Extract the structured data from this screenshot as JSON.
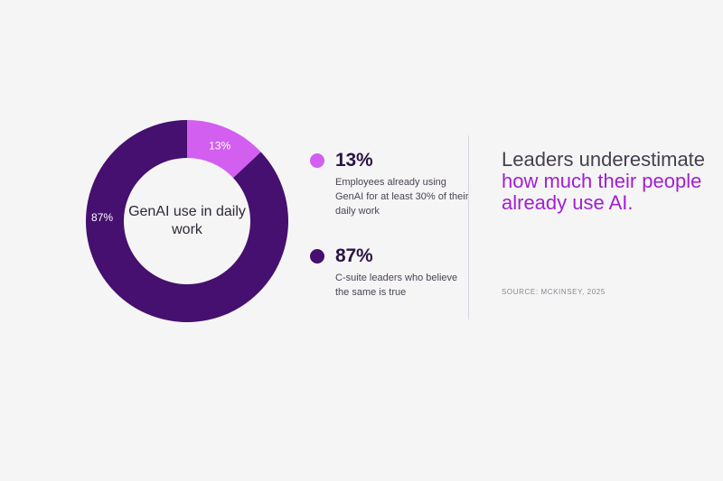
{
  "colors": {
    "background": "#f6f5f5",
    "light_purple": "#d25ff0",
    "dark_purple": "#45106f",
    "accent_text": "#a11ed4"
  },
  "chart_data": {
    "type": "pie",
    "donut": true,
    "center_label": "GenAI use in daily work",
    "slices": [
      {
        "label": "13%",
        "value": 13,
        "color": "#d25ff0"
      },
      {
        "label": "87%",
        "value": 87,
        "color": "#45106f"
      }
    ]
  },
  "legend": [
    {
      "value": "13%",
      "description": "Employees already using GenAI for at least 30% of their daily work",
      "color": "#d25ff0"
    },
    {
      "value": "87%",
      "description": "C-suite leaders who believe the same is true",
      "color": "#45106f"
    }
  ],
  "headline": {
    "plain": "Leaders underestimate",
    "accent": "how much their people already use AI."
  },
  "source": "SOURCE: MCKINSEY, 2025"
}
